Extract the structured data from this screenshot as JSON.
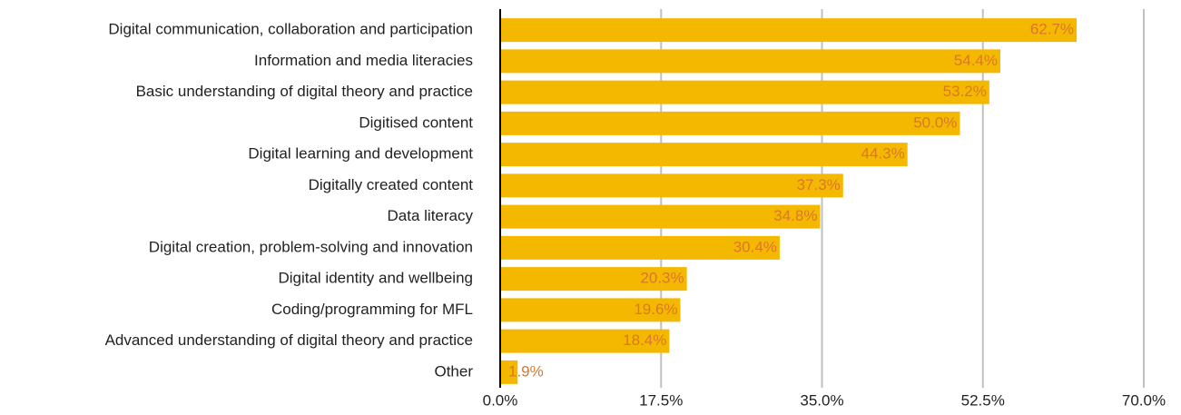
{
  "chart_data": {
    "type": "hbar",
    "categories": [
      "Digital communication, collaboration and participation",
      "Information and media literacies",
      "Basic understanding of digital theory and practice",
      "Digitised content",
      "Digital learning and development",
      "Digitally created content",
      "Data literacy",
      "Digital creation, problem-solving and innovation",
      "Digital identity and wellbeing",
      "Coding/programming for MFL",
      "Advanced understanding of digital theory and practice",
      "Other"
    ],
    "values": [
      62.7,
      54.4,
      53.2,
      50.0,
      44.3,
      37.3,
      34.8,
      30.4,
      20.3,
      19.6,
      18.4,
      1.9
    ],
    "value_labels": [
      "62.7%",
      "54.4%",
      "53.2%",
      "50.0%",
      "44.3%",
      "37.3%",
      "34.8%",
      "30.4%",
      "20.3%",
      "19.6%",
      "18.4%",
      "1.9%"
    ],
    "color": "#f5b800",
    "label_color": "#d9782b",
    "xlim": [
      0,
      70
    ],
    "xticks": [
      {
        "value": 0,
        "label": "0.0%"
      },
      {
        "value": 17.5,
        "label": "17.5%"
      },
      {
        "value": 35,
        "label": "35.0%"
      },
      {
        "value": 52.5,
        "label": "52.5%"
      },
      {
        "value": 70,
        "label": "70.0%"
      }
    ],
    "grid": true
  }
}
